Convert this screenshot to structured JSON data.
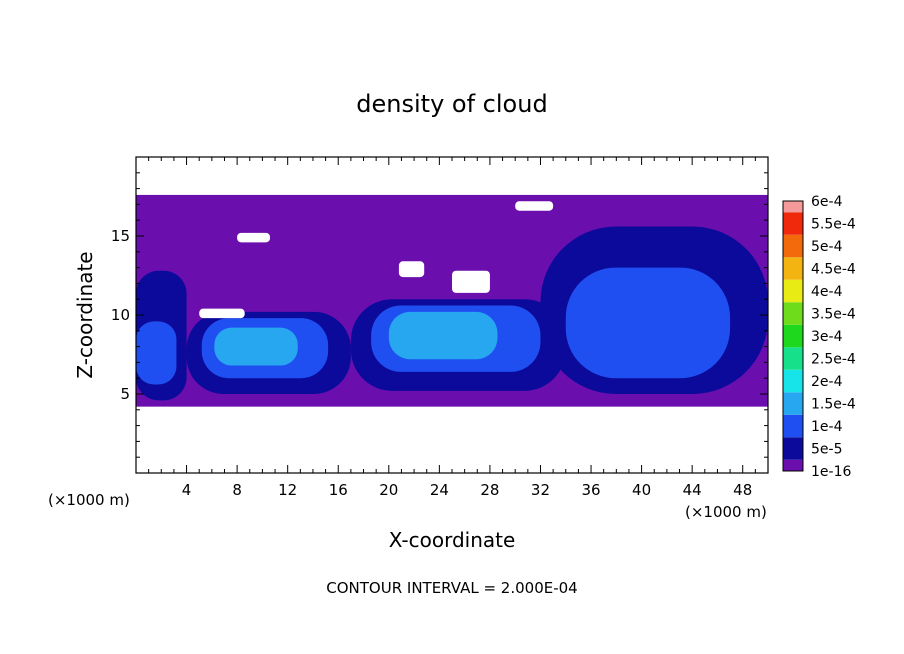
{
  "chart_data": {
    "type": "heatmap",
    "title": "density of cloud",
    "xlabel": "X-coordinate",
    "ylabel": "Z-coordinate",
    "x_unit_left": "(×1000 m)",
    "x_unit_right": "(×1000 m)",
    "footer": "CONTOUR INTERVAL = 2.000E-04",
    "xlim": [
      0,
      50
    ],
    "ylim": [
      0,
      20
    ],
    "x_ticks": [
      {
        "value": 4,
        "label": "4"
      },
      {
        "value": 8,
        "label": "8"
      },
      {
        "value": 12,
        "label": "12"
      },
      {
        "value": 16,
        "label": "16"
      },
      {
        "value": 20,
        "label": "20"
      },
      {
        "value": 24,
        "label": "24"
      },
      {
        "value": 28,
        "label": "28"
      },
      {
        "value": 32,
        "label": "32"
      },
      {
        "value": 36,
        "label": "36"
      },
      {
        "value": 40,
        "label": "40"
      },
      {
        "value": 44,
        "label": "44"
      },
      {
        "value": 48,
        "label": "48"
      }
    ],
    "y_ticks": [
      {
        "value": 5,
        "label": "5"
      },
      {
        "value": 10,
        "label": "10"
      },
      {
        "value": 15,
        "label": "15"
      }
    ],
    "colorbar": [
      {
        "label": "1e-16",
        "color": "#6a0fae"
      },
      {
        "label": "5e-5",
        "color": "#0c0a9a"
      },
      {
        "label": "1e-4",
        "color": "#1f4ff0"
      },
      {
        "label": "1.5e-4",
        "color": "#27a7f0"
      },
      {
        "label": "2e-4",
        "color": "#17e4e8"
      },
      {
        "label": "2.5e-4",
        "color": "#16e08a"
      },
      {
        "label": "3e-4",
        "color": "#1dd81d"
      },
      {
        "label": "3.5e-4",
        "color": "#6edc1a"
      },
      {
        "label": "4e-4",
        "color": "#e8ec14"
      },
      {
        "label": "4.5e-4",
        "color": "#f3b412"
      },
      {
        "label": "5e-4",
        "color": "#f26a0c"
      },
      {
        "label": "5.5e-4",
        "color": "#f0280c"
      },
      {
        "label": "6e-4",
        "color": "#f49a9a"
      }
    ],
    "cloud_layer": {
      "z_bottom": 4.2,
      "z_top": 17.6
    },
    "regions": [
      {
        "level": 1,
        "x": [
          0.0,
          4.0
        ],
        "z": [
          4.6,
          12.8
        ]
      },
      {
        "level": 1,
        "x": [
          4.0,
          17.0
        ],
        "z": [
          5.0,
          10.2
        ]
      },
      {
        "level": 1,
        "x": [
          17.0,
          34.0
        ],
        "z": [
          5.2,
          11.0
        ]
      },
      {
        "level": 1,
        "x": [
          32.0,
          50.0
        ],
        "z": [
          5.0,
          15.6
        ]
      },
      {
        "level": 2,
        "x": [
          5.2,
          15.2
        ],
        "z": [
          6.0,
          9.8
        ]
      },
      {
        "level": 2,
        "x": [
          18.6,
          32.0
        ],
        "z": [
          6.4,
          10.6
        ]
      },
      {
        "level": 2,
        "x": [
          34.0,
          47.0
        ],
        "z": [
          6.0,
          13.0
        ]
      },
      {
        "level": 2,
        "x": [
          0.0,
          3.2
        ],
        "z": [
          5.6,
          9.6
        ]
      },
      {
        "level": 3,
        "x": [
          6.2,
          12.8
        ],
        "z": [
          6.8,
          9.2
        ]
      },
      {
        "level": 3,
        "x": [
          20.0,
          28.6
        ],
        "z": [
          7.2,
          10.2
        ]
      }
    ],
    "gaps": [
      {
        "x": [
          5.0,
          8.6
        ],
        "z": [
          9.8,
          10.4
        ]
      },
      {
        "x": [
          20.8,
          22.8
        ],
        "z": [
          12.4,
          13.4
        ]
      },
      {
        "x": [
          25.0,
          28.0
        ],
        "z": [
          11.4,
          12.8
        ]
      },
      {
        "x": [
          8.0,
          10.6
        ],
        "z": [
          14.6,
          15.2
        ]
      },
      {
        "x": [
          30.0,
          33.0
        ],
        "z": [
          16.6,
          17.2
        ]
      }
    ]
  }
}
